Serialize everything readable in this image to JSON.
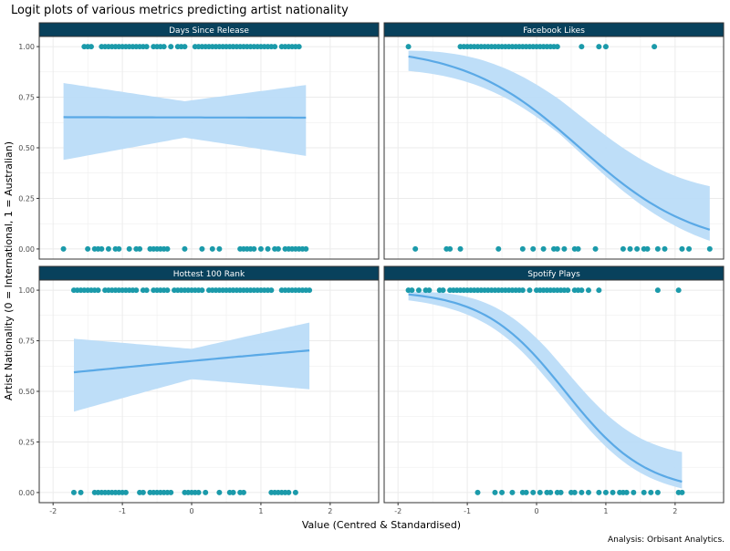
{
  "title": "Logit plots of various metrics predicting artist nationality",
  "caption": "Analysis: Orbisant Analytics.",
  "colors": {
    "strip": "#08415c",
    "strip_text": "#ffffff",
    "point": "#1b9aaa",
    "line": "#5aa9e6",
    "band": "#bbdcf8",
    "grid": "#ebebeb",
    "frame": "#333333"
  },
  "chart_data": {
    "type": "scatter",
    "xlabel": "Value (Centred & Standardised)",
    "ylabel": "Artist Nationality (0 = International, 1 = Australian)",
    "xlim": [
      -2.2,
      2.7
    ],
    "ylim": [
      -0.05,
      1.05
    ],
    "x_ticks": [
      {
        "value": -2,
        "label": "-2"
      },
      {
        "value": -1,
        "label": "-1"
      },
      {
        "value": 0,
        "label": "0"
      },
      {
        "value": 1,
        "label": "1"
      },
      {
        "value": 2,
        "label": "2"
      }
    ],
    "y_ticks": [
      {
        "value": 0,
        "label": "0.00"
      },
      {
        "value": 0.25,
        "label": "0.25"
      },
      {
        "value": 0.5,
        "label": "0.50"
      },
      {
        "value": 0.75,
        "label": "0.75"
      },
      {
        "value": 1,
        "label": "1.00"
      }
    ],
    "grid": true,
    "panels": [
      {
        "name": "Days Since Release",
        "fit": {
          "x0": -1.85,
          "x1": 1.65,
          "b0": 0.619,
          "b1": -0.003,
          "lower": [
            0.44,
            0.55,
            0.46
          ],
          "upper": [
            0.82,
            0.73,
            0.81
          ]
        },
        "points_1": [
          -1.55,
          -1.5,
          -1.45,
          -1.3,
          -1.25,
          -1.2,
          -1.15,
          -1.1,
          -1.05,
          -1.0,
          -0.95,
          -0.9,
          -0.85,
          -0.8,
          -0.75,
          -0.7,
          -0.65,
          -0.55,
          -0.5,
          -0.45,
          -0.4,
          -0.3,
          -0.2,
          -0.15,
          -0.1,
          0.05,
          0.1,
          0.15,
          0.2,
          0.25,
          0.3,
          0.35,
          0.4,
          0.45,
          0.5,
          0.55,
          0.6,
          0.65,
          0.7,
          0.75,
          0.8,
          0.85,
          0.9,
          0.95,
          1.0,
          1.05,
          1.1,
          1.15,
          1.2,
          1.3,
          1.35,
          1.4,
          1.45,
          1.5,
          1.55
        ],
        "points_0": [
          -1.85,
          -1.5,
          -1.4,
          -1.35,
          -1.3,
          -1.2,
          -1.1,
          -1.05,
          -0.9,
          -0.8,
          -0.75,
          -0.6,
          -0.55,
          -0.5,
          -0.45,
          -0.4,
          -0.35,
          -0.1,
          0.15,
          0.3,
          0.4,
          0.7,
          0.75,
          0.8,
          0.85,
          0.9,
          1.0,
          1.1,
          1.2,
          1.25,
          1.35,
          1.4,
          1.45,
          1.5,
          1.55,
          1.6,
          1.65
        ]
      },
      {
        "name": "Facebook Likes",
        "fit": {
          "x0": -1.85,
          "x1": 2.5,
          "b0": 0.75,
          "b1": -1.2,
          "lower": [
            0.88,
            0.57,
            0.04
          ],
          "upper": [
            0.98,
            0.74,
            0.31
          ]
        },
        "points_1": [
          -1.85,
          -1.1,
          -1.05,
          -1.0,
          -0.95,
          -0.9,
          -0.85,
          -0.8,
          -0.75,
          -0.7,
          -0.65,
          -0.6,
          -0.55,
          -0.5,
          -0.45,
          -0.4,
          -0.35,
          -0.3,
          -0.25,
          -0.2,
          -0.15,
          -0.1,
          -0.05,
          0.0,
          0.05,
          0.1,
          0.15,
          0.2,
          0.25,
          0.3,
          0.65,
          0.9,
          1.0,
          1.7
        ],
        "points_0": [
          -1.75,
          -1.3,
          -1.25,
          -1.1,
          -0.55,
          -0.2,
          -0.05,
          0.1,
          0.25,
          0.3,
          0.4,
          0.55,
          0.6,
          0.85,
          1.25,
          1.35,
          1.45,
          1.55,
          1.6,
          1.75,
          1.85,
          2.1,
          2.2,
          2.5
        ]
      },
      {
        "name": "Hottest 100 Rank",
        "fit": {
          "x0": -1.7,
          "x1": 1.7,
          "b0": 0.62,
          "b1": 0.14,
          "lower": [
            0.4,
            0.56,
            0.51
          ],
          "upper": [
            0.76,
            0.71,
            0.84
          ]
        },
        "points_1": [
          -1.7,
          -1.65,
          -1.6,
          -1.55,
          -1.5,
          -1.45,
          -1.4,
          -1.35,
          -1.25,
          -1.2,
          -1.15,
          -1.1,
          -1.05,
          -1.0,
          -0.95,
          -0.9,
          -0.85,
          -0.8,
          -0.7,
          -0.65,
          -0.55,
          -0.5,
          -0.45,
          -0.4,
          -0.35,
          -0.25,
          -0.2,
          -0.15,
          -0.1,
          -0.05,
          0.0,
          0.05,
          0.1,
          0.15,
          0.25,
          0.3,
          0.35,
          0.4,
          0.45,
          0.5,
          0.55,
          0.6,
          0.65,
          0.7,
          0.75,
          0.8,
          0.85,
          0.9,
          0.95,
          1.0,
          1.05,
          1.1,
          1.15,
          1.3,
          1.35,
          1.4,
          1.45,
          1.5,
          1.55,
          1.6,
          1.65,
          1.7
        ],
        "points_0": [
          -1.7,
          -1.6,
          -1.4,
          -1.35,
          -1.3,
          -1.25,
          -1.2,
          -1.15,
          -1.1,
          -1.05,
          -1.0,
          -0.95,
          -0.75,
          -0.7,
          -0.6,
          -0.55,
          -0.5,
          -0.45,
          -0.4,
          -0.35,
          -0.3,
          -0.1,
          -0.05,
          0.0,
          0.05,
          0.1,
          0.2,
          0.4,
          0.55,
          0.6,
          0.7,
          0.75,
          1.15,
          1.2,
          1.25,
          1.3,
          1.35,
          1.4,
          1.5
        ]
      },
      {
        "name": "Spotify Plays",
        "fit": {
          "x0": -1.85,
          "x1": 2.1,
          "b0": 0.7,
          "b1": -1.7,
          "lower": [
            0.95,
            0.57,
            0.02
          ],
          "upper": [
            0.99,
            0.72,
            0.2
          ]
        },
        "points_1": [
          -1.85,
          -1.8,
          -1.7,
          -1.6,
          -1.55,
          -1.4,
          -1.35,
          -1.25,
          -1.2,
          -1.15,
          -1.1,
          -1.05,
          -1.0,
          -0.95,
          -0.9,
          -0.85,
          -0.8,
          -0.75,
          -0.7,
          -0.65,
          -0.6,
          -0.55,
          -0.5,
          -0.45,
          -0.4,
          -0.35,
          -0.3,
          -0.25,
          -0.2,
          -0.1,
          0.0,
          0.05,
          0.1,
          0.15,
          0.2,
          0.25,
          0.3,
          0.35,
          0.4,
          0.45,
          0.55,
          0.6,
          0.65,
          0.75,
          0.9,
          1.75,
          2.05
        ],
        "points_0": [
          -0.85,
          -0.6,
          -0.5,
          -0.35,
          -0.2,
          -0.15,
          -0.05,
          0.05,
          0.15,
          0.2,
          0.3,
          0.35,
          0.5,
          0.55,
          0.65,
          0.75,
          0.9,
          1.0,
          1.1,
          1.2,
          1.25,
          1.3,
          1.4,
          1.55,
          1.65,
          1.75,
          2.05,
          2.1
        ]
      }
    ]
  }
}
